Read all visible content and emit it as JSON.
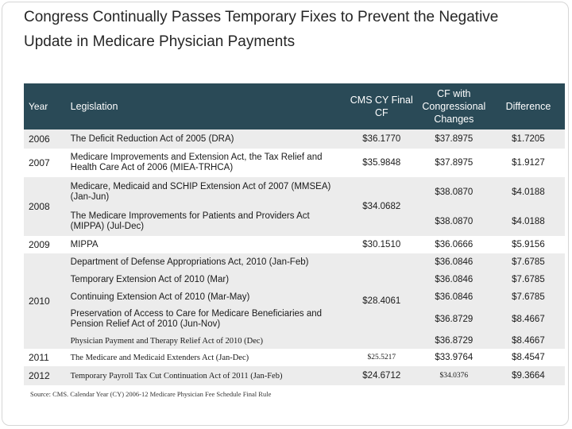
{
  "title": "Congress Continually Passes Temporary Fixes to Prevent the Negative Update in Medicare Physician Payments",
  "headers": {
    "year": "Year",
    "legislation": "Legislation",
    "cms_cf": "CMS CY Final CF",
    "cf_congress": "CF with Congressional Changes",
    "difference": "Difference"
  },
  "rows": [
    {
      "year": "2006",
      "legislation": "The Deficit Reduction Act of 2005 (DRA)",
      "cms": "$36.1770",
      "cf": "$37.8975",
      "diff": "$1.7205"
    },
    {
      "year": "2007",
      "legislation": "Medicare Improvements and Extension Act, the Tax Relief and Health Care Act of 2006 (MIEA-TRHCA)",
      "cms": "$35.9848",
      "cf": "$37.8975",
      "diff": "$1.9127"
    },
    {
      "year": "2008",
      "cms": "$34.0682",
      "sub": [
        {
          "legislation": "Medicare, Medicaid and SCHIP Extension Act of 2007 (MMSEA) (Jan-Jun)",
          "cf": "$38.0870",
          "diff": "$4.0188"
        },
        {
          "legislation": "The Medicare Improvements for Patients and Providers Act (MIPPA) (Jul-Dec)",
          "cf": "$38.0870",
          "diff": "$4.0188"
        }
      ]
    },
    {
      "year": "2009",
      "legislation": "MIPPA",
      "cms": "$30.1510",
      "cf": "$36.0666",
      "diff": "$5.9156"
    },
    {
      "year": "2010",
      "cms": "$28.4061",
      "sub": [
        {
          "legislation": "Department of Defense Appropriations Act, 2010 (Jan-Feb)",
          "cf": "$36.0846",
          "diff": "$7.6785"
        },
        {
          "legislation": "Temporary Extension Act of 2010 (Mar)",
          "cf": "$36.0846",
          "diff": "$7.6785"
        },
        {
          "legislation": "Continuing Extension Act of 2010 (Mar-May)",
          "cf": "$36.0846",
          "diff": "$7.6785"
        },
        {
          "legislation": "Preservation of Access to Care for Medicare Beneficiaries and Pension Relief Act of 2010 (Jun-Nov)",
          "cf": "$36.8729",
          "diff": "$8.4667"
        },
        {
          "legislation": "Physician Payment and Therapy Relief Act of 2010 (Dec)",
          "cf": "$36.8729",
          "diff": "$8.4667"
        }
      ]
    },
    {
      "year": "2011",
      "legislation": "The Medicare and Medicaid Extenders Act (Jan-Dec)",
      "cms": "$25.5217",
      "cf": "$33.9764",
      "diff": "$8.4547"
    },
    {
      "year": "2012",
      "legislation": "Temporary Payroll Tax Cut Continuation Act of 2011 (Jan-Feb)",
      "cms": "$24.6712",
      "cf": "$34.0376",
      "diff": "$9.3664"
    }
  ],
  "source": "Source: CMS. Calendar Year (CY) 2006-12 Medicare Physician Fee Schedule Final Rule"
}
